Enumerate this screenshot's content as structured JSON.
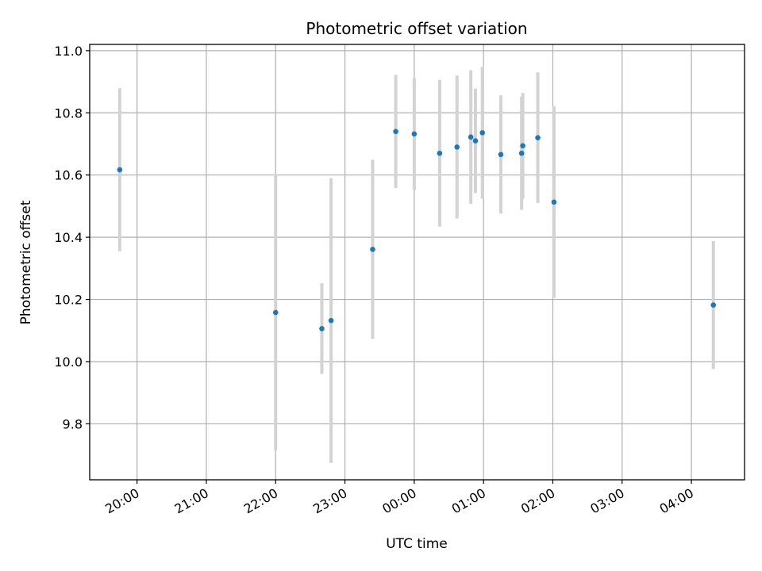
{
  "chart_data": {
    "type": "scatter",
    "title": "Photometric offset variation",
    "xlabel": "UTC time",
    "ylabel": "Photometric offset",
    "x_axis": "time",
    "x_range": [
      "2023-01-01T19:19",
      "2023-01-02T04:46"
    ],
    "ylim": [
      9.62,
      11.02
    ],
    "x_ticks": [
      {
        "t": "2023-01-01T20:00",
        "label": "20:00"
      },
      {
        "t": "2023-01-01T21:00",
        "label": "21:00"
      },
      {
        "t": "2023-01-01T22:00",
        "label": "22:00"
      },
      {
        "t": "2023-01-01T23:00",
        "label": "23:00"
      },
      {
        "t": "2023-01-02T00:00",
        "label": "00:00"
      },
      {
        "t": "2023-01-02T01:00",
        "label": "01:00"
      },
      {
        "t": "2023-01-02T02:00",
        "label": "02:00"
      },
      {
        "t": "2023-01-02T03:00",
        "label": "03:00"
      },
      {
        "t": "2023-01-02T04:00",
        "label": "04:00"
      }
    ],
    "y_ticks": [
      {
        "v": 9.8,
        "label": "9.8"
      },
      {
        "v": 10.0,
        "label": "10.0"
      },
      {
        "v": 10.2,
        "label": "10.2"
      },
      {
        "v": 10.4,
        "label": "10.4"
      },
      {
        "v": 10.6,
        "label": "10.6"
      },
      {
        "v": 10.8,
        "label": "10.8"
      },
      {
        "v": 11.0,
        "label": "11.0"
      }
    ],
    "grid": true,
    "marker_color": "#1f77b4",
    "errorbar_color": "#d3d3d3",
    "points": [
      {
        "t": "2023-01-01T19:45",
        "y": 10.617,
        "err": 0.262
      },
      {
        "t": "2023-01-01T22:00",
        "y": 10.158,
        "err": 0.444
      },
      {
        "t": "2023-01-01T22:40",
        "y": 10.106,
        "err": 0.146
      },
      {
        "t": "2023-01-01T22:48",
        "y": 10.132,
        "err": 0.458
      },
      {
        "t": "2023-01-01T23:24",
        "y": 10.361,
        "err": 0.288
      },
      {
        "t": "2023-01-01T23:44",
        "y": 10.74,
        "err": 0.182
      },
      {
        "t": "2023-01-02T00:00",
        "y": 10.732,
        "err": 0.18
      },
      {
        "t": "2023-01-02T00:22",
        "y": 10.67,
        "err": 0.236
      },
      {
        "t": "2023-01-02T00:37",
        "y": 10.69,
        "err": 0.23
      },
      {
        "t": "2023-01-02T00:49",
        "y": 10.722,
        "err": 0.215
      },
      {
        "t": "2023-01-02T00:53",
        "y": 10.71,
        "err": 0.168
      },
      {
        "t": "2023-01-02T00:59",
        "y": 10.736,
        "err": 0.212
      },
      {
        "t": "2023-01-02T01:15",
        "y": 10.666,
        "err": 0.19
      },
      {
        "t": "2023-01-02T01:33",
        "y": 10.67,
        "err": 0.182
      },
      {
        "t": "2023-01-02T01:34",
        "y": 10.694,
        "err": 0.17
      },
      {
        "t": "2023-01-02T01:47",
        "y": 10.72,
        "err": 0.21
      },
      {
        "t": "2023-01-02T02:01",
        "y": 10.513,
        "err": 0.308
      },
      {
        "t": "2023-01-02T04:19",
        "y": 10.182,
        "err": 0.206
      }
    ]
  }
}
